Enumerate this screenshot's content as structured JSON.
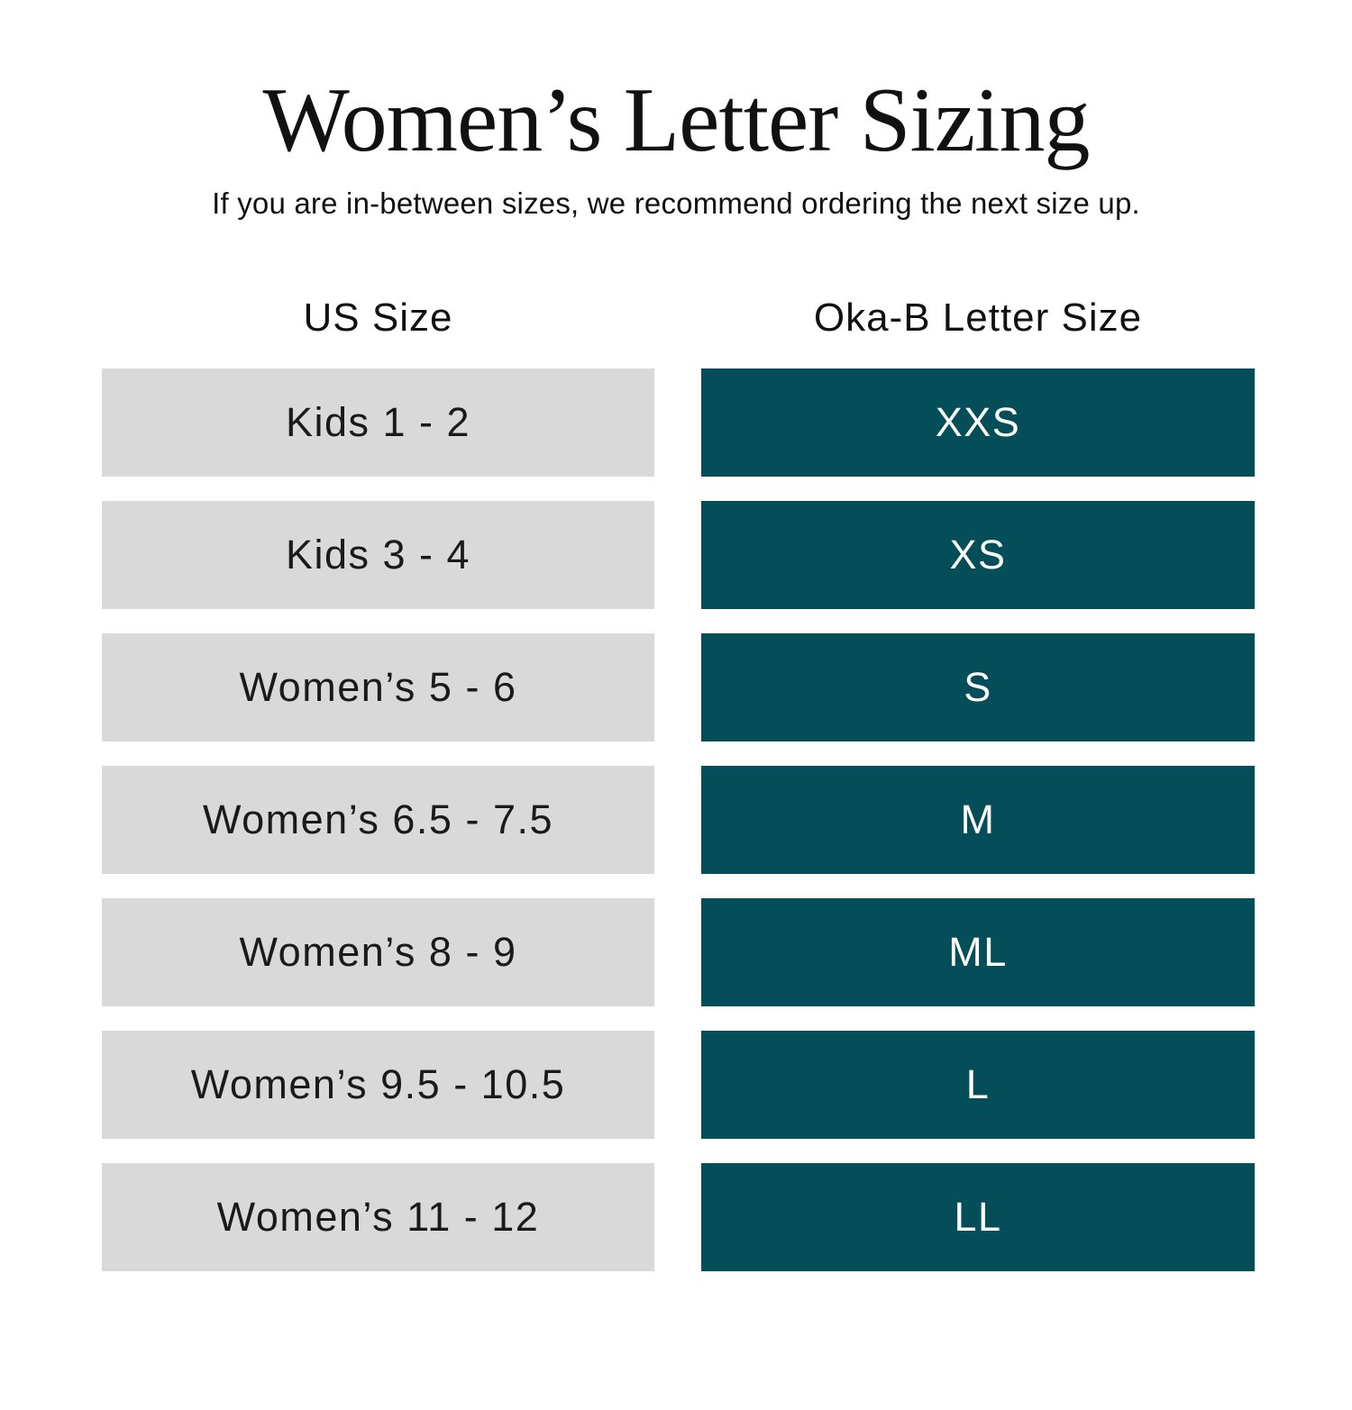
{
  "header": {
    "title": "Women’s Letter Sizing",
    "subtitle": "If you are in-between sizes, we recommend ordering the next size up."
  },
  "chart_data": {
    "type": "table",
    "title": "Women’s Letter Sizing",
    "subtitle": "If you are in-between sizes, we recommend ordering the next size up.",
    "columns": [
      "US Size",
      "Oka-B Letter Size"
    ],
    "rows": [
      [
        "Kids 1 - 2",
        "XXS"
      ],
      [
        "Kids 3 - 4",
        "XS"
      ],
      [
        "Women’s 5 - 6",
        "S"
      ],
      [
        "Women’s 6.5 - 7.5",
        "M"
      ],
      [
        "Women’s 8 - 9",
        "ML"
      ],
      [
        "Women’s 9.5 - 10.5",
        "L"
      ],
      [
        "Women’s 11 - 12",
        "LL"
      ]
    ],
    "layout": {
      "legend": "none",
      "grid": "off"
    }
  },
  "colors": {
    "page_background": "#ffffff",
    "us_size_cell_background": "#d9d9d9",
    "letter_size_cell_background": "#034e59",
    "title_text": "#111111",
    "us_size_cell_text": "#1a1a1a",
    "letter_size_cell_text": "#ffffff"
  }
}
